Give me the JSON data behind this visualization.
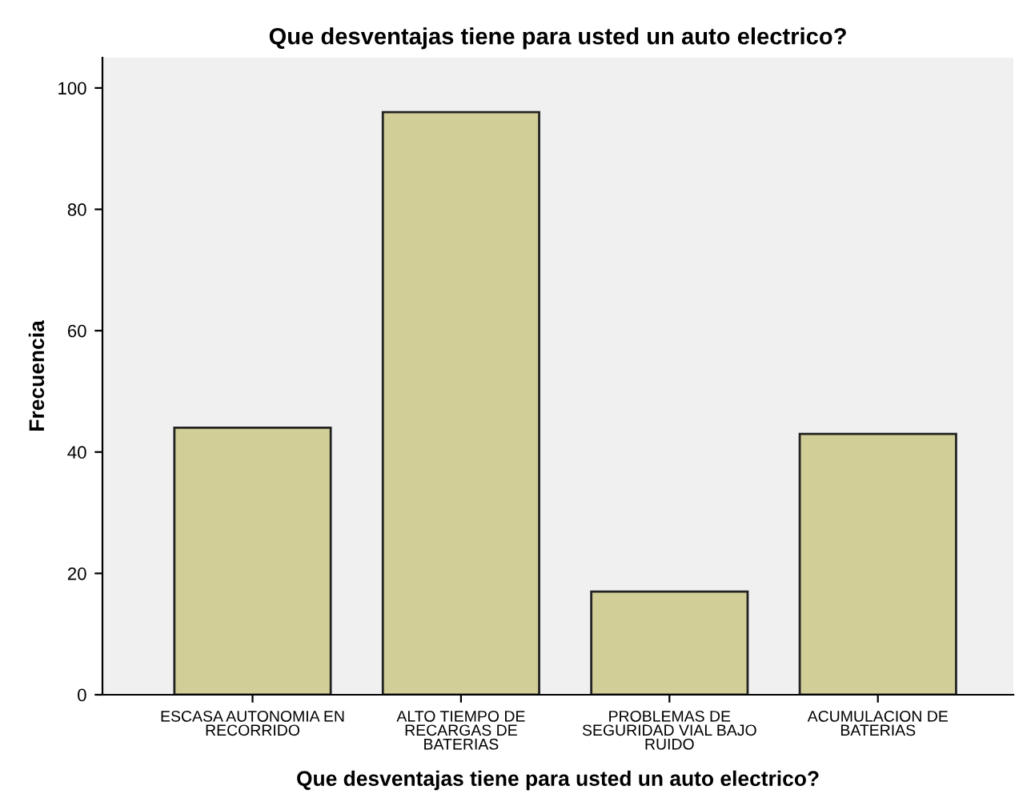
{
  "chart_data": {
    "type": "bar",
    "title": "Que desventajas tiene para usted un auto electrico?",
    "xlabel": "Que desventajas tiene para usted un auto electrico?",
    "ylabel": "Frecuencia",
    "categories": [
      "ESCASA AUTONOMIA EN\nRECORRIDO",
      "ALTO TIEMPO DE\nRECARGAS DE\nBATERIAS",
      "PROBLEMAS DE\nSEGURIDAD VIAL BAJO\nRUIDO",
      "ACUMULACION DE\nBATERIAS"
    ],
    "values": [
      44,
      96,
      17,
      43
    ],
    "color": "#d2ce97",
    "ylim": [
      0,
      105
    ],
    "yticks": [
      0,
      20,
      40,
      60,
      80,
      100
    ],
    "grid": false
  }
}
